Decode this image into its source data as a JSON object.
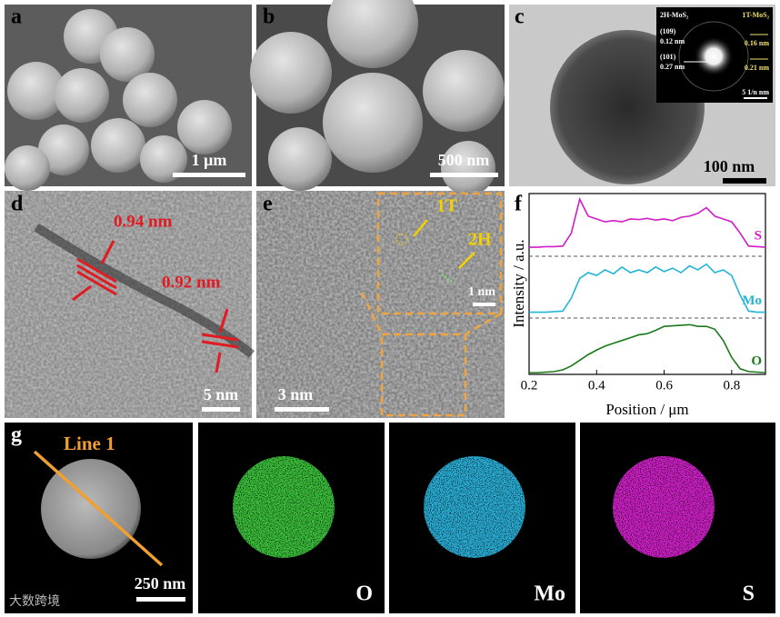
{
  "panels": {
    "a": {
      "label": "a",
      "scale_bar": "1 μm"
    },
    "b": {
      "label": "b",
      "scale_bar": "500 nm"
    },
    "c": {
      "label": "c",
      "scale_bar": "100 nm",
      "inset": {
        "left_title": "2H-MoS₂",
        "right_title": "1T-MoS₂",
        "ring_1": "(109)",
        "ring_1_d": "0.12 nm",
        "ring_2": "(101)",
        "ring_2_d": "0.27 nm",
        "right_1": "0.16 nm",
        "right_2": "0.21 nm",
        "scale_bar": "5 1/n nm"
      }
    },
    "d": {
      "label": "d",
      "scale_bar": "5 nm",
      "spacing_1": "0.94 nm",
      "spacing_2": "0.92 nm"
    },
    "e": {
      "label": "e",
      "scale_bar": "3 nm",
      "inset_scale_bar": "1 nm",
      "phase_1": "1T",
      "phase_2": "2H"
    },
    "f": {
      "label": "f"
    },
    "g": {
      "label": "g",
      "line": "Line 1",
      "scale_bar": "250 nm",
      "maps": [
        "O",
        "Mo",
        "S"
      ]
    },
    "watermark": "大数跨境"
  },
  "chart_data": {
    "type": "line",
    "xlabel": "Position / μm",
    "ylabel": "Intensity / a.u.",
    "x": [
      0.2,
      0.225,
      0.25,
      0.275,
      0.3,
      0.325,
      0.35,
      0.375,
      0.4,
      0.425,
      0.45,
      0.475,
      0.5,
      0.525,
      0.55,
      0.575,
      0.6,
      0.625,
      0.65,
      0.675,
      0.7,
      0.725,
      0.75,
      0.775,
      0.8,
      0.825,
      0.85,
      0.875,
      0.9
    ],
    "xlim": [
      0.2,
      0.9
    ],
    "xticks": [
      0.2,
      0.4,
      0.6,
      0.8
    ],
    "ylim": [
      0,
      3.2
    ],
    "series": [
      {
        "name": "S",
        "color": "#d21cc8",
        "values": [
          2.25,
          2.25,
          2.26,
          2.26,
          2.27,
          2.5,
          3.1,
          2.8,
          2.75,
          2.7,
          2.72,
          2.7,
          2.75,
          2.74,
          2.76,
          2.73,
          2.75,
          2.72,
          2.78,
          2.8,
          2.85,
          2.95,
          2.8,
          2.75,
          2.7,
          2.5,
          2.27,
          2.26,
          2.25
        ]
      },
      {
        "name": "Mo",
        "color": "#22b5d8",
        "values": [
          1.1,
          1.1,
          1.1,
          1.11,
          1.12,
          1.35,
          1.7,
          1.8,
          1.75,
          1.85,
          1.78,
          1.9,
          1.8,
          1.85,
          1.8,
          1.9,
          1.82,
          1.88,
          1.8,
          1.92,
          1.85,
          1.95,
          1.8,
          1.85,
          1.75,
          1.4,
          1.12,
          1.1,
          1.1
        ]
      },
      {
        "name": "O",
        "color": "#1a7a1a",
        "values": [
          0.03,
          0.03,
          0.04,
          0.05,
          0.08,
          0.15,
          0.25,
          0.35,
          0.43,
          0.5,
          0.55,
          0.6,
          0.65,
          0.7,
          0.72,
          0.78,
          0.85,
          0.86,
          0.87,
          0.88,
          0.85,
          0.85,
          0.8,
          0.6,
          0.3,
          0.1,
          0.05,
          0.04,
          0.03
        ]
      }
    ]
  }
}
